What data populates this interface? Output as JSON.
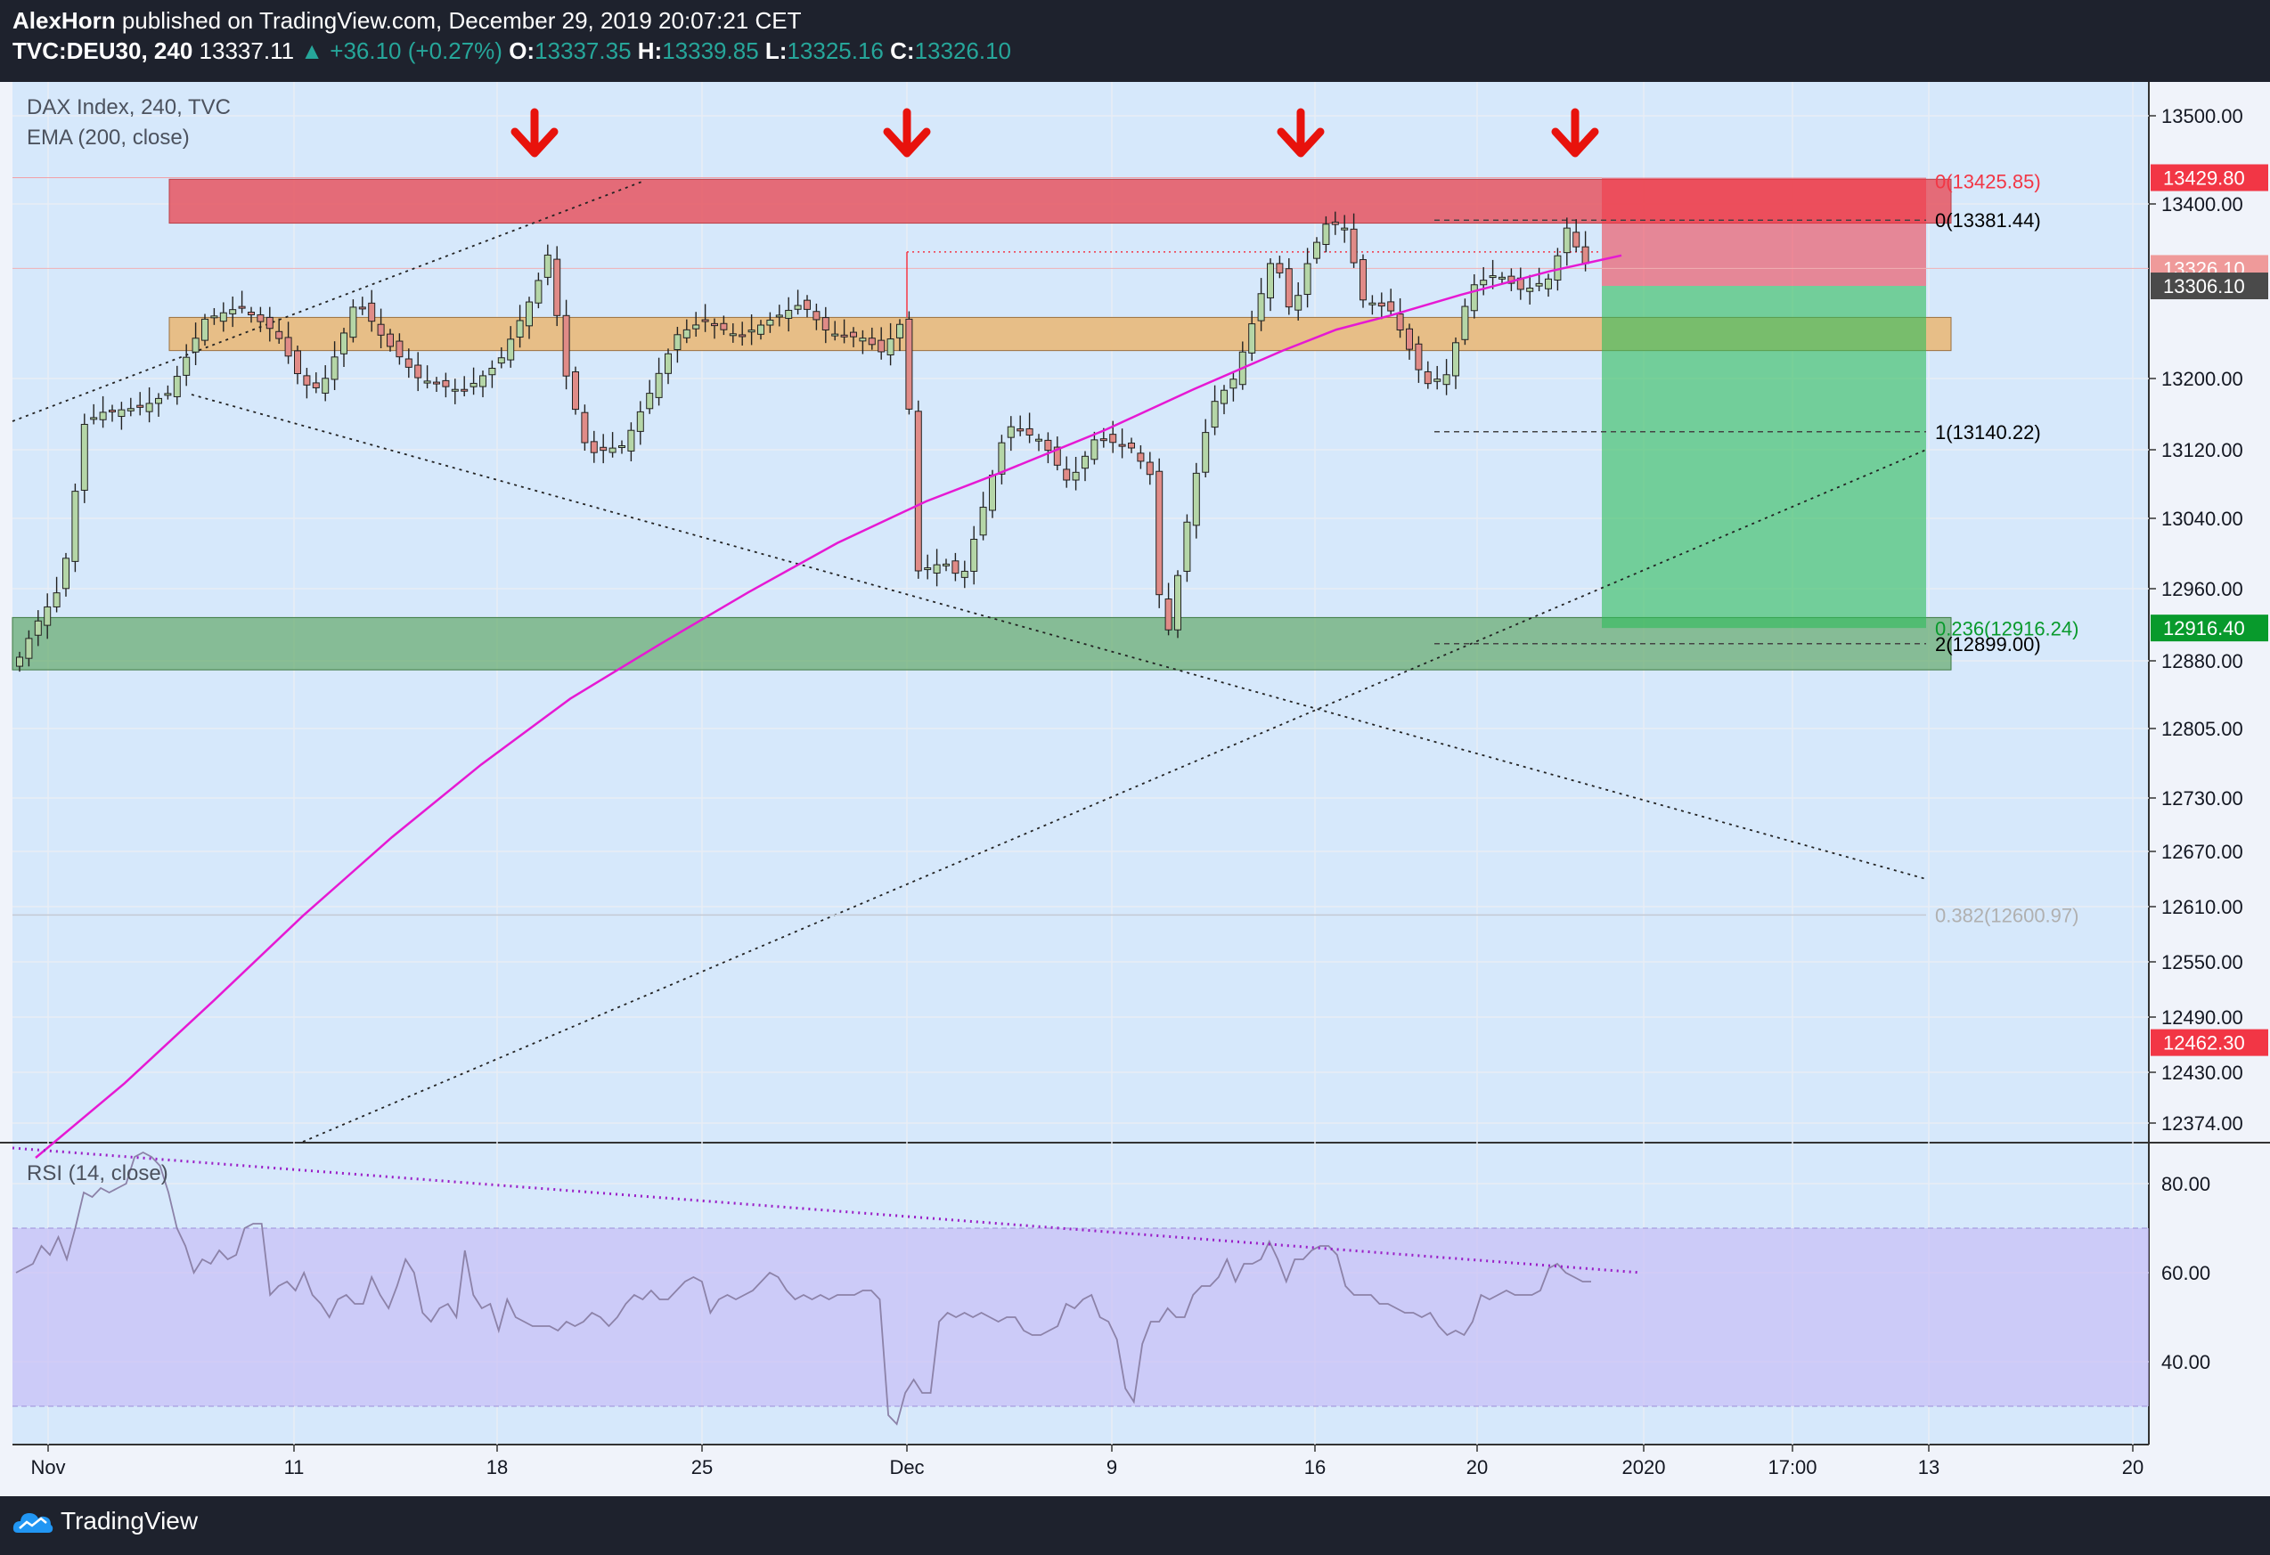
{
  "header": {
    "author": "AlexHorn",
    "published": "published on TradingView.com, December 29, 2019 20:07:21 CET",
    "symbol": "TVC:DEU30, 240",
    "last": "13337.11",
    "arrow": "▲",
    "change": "+36.10 (+0.27%)",
    "o_label": "O:",
    "o_value": "13337.35",
    "h_label": "H:",
    "h_value": "13339.85",
    "l_label": "L:",
    "l_value": "13325.16",
    "c_label": "C:",
    "c_value": "13326.10"
  },
  "footer": {
    "brand": "TradingView",
    "logo_icon": "tradingview-cloud-icon"
  },
  "colors": {
    "bg": "#d6e8fb",
    "up": "#b5d6a7",
    "down": "#e08b87",
    "ema": "#e619d3",
    "rsi": "#8c82a8",
    "resistance": "#e65560",
    "support_zone": "#e9b97a",
    "green_zone": "#5aa55f",
    "target": "#2ebd5a",
    "arrow": "#e8120c"
  },
  "chart_data": [
    {
      "type": "candlestick",
      "title": "DAX Index, 240, TVC",
      "indicator": "EMA (200, close)",
      "x_tick_labels": [
        "Nov",
        "11",
        "18",
        "25",
        "Dec",
        "9",
        "16",
        "20",
        "2020",
        "17:00",
        "13",
        "20"
      ],
      "y_tick_labels": [
        "13500.00",
        "13400.00",
        "13200.00",
        "13120.00",
        "13040.00",
        "12960.00",
        "12880.00",
        "12805.00",
        "12730.00",
        "12670.00",
        "12610.00",
        "12550.00",
        "12490.00",
        "12430.00",
        "12374.00"
      ],
      "y_range": [
        12350,
        13560
      ],
      "price_badges": [
        {
          "label": "13429.80",
          "price": 13429.8,
          "color": "#f23645"
        },
        {
          "label": "13326.10",
          "price": 13326.1,
          "color": "#ef9a9a"
        },
        {
          "label": "13306.10",
          "price": 13306.1,
          "color": "#4a4a4a"
        },
        {
          "label": "12916.40",
          "price": 12916.4,
          "color": "#089a2c"
        },
        {
          "label": "12462.30",
          "price": 12462.3,
          "color": "#f23645"
        }
      ],
      "levels": [
        {
          "label": "0(13425.85)",
          "price": 13425.85,
          "color": "#f23645"
        },
        {
          "label": "0(13381.44)",
          "price": 13381.44,
          "color": "#000000"
        },
        {
          "label": "1(13140.22)",
          "price": 13140.22,
          "color": "#000000"
        },
        {
          "label": "0.236(12916.24)",
          "price": 12916.24,
          "color": "#089a2c"
        },
        {
          "label": "2(12899.00)",
          "price": 12899.0,
          "color": "#000000"
        },
        {
          "label": "0.382(12600.97)",
          "price": 12600.97,
          "color": "#b0b0b0"
        }
      ],
      "zones": [
        {
          "name": "resistance",
          "from": 13378,
          "to": 13428
        },
        {
          "name": "support",
          "from": 13232,
          "to": 13270
        },
        {
          "name": "demand",
          "from": 12870,
          "to": 12928
        }
      ],
      "trade": {
        "entry": 13306.1,
        "stop": 13429.8,
        "target": 12916.4
      },
      "ema_samples": [
        [
          0,
          12335
        ],
        [
          100,
          12418
        ],
        [
          200,
          12508
        ],
        [
          300,
          12600
        ],
        [
          400,
          12686
        ],
        [
          500,
          12766
        ],
        [
          600,
          12838
        ],
        [
          700,
          12898
        ],
        [
          800,
          12956
        ],
        [
          900,
          13012
        ],
        [
          1000,
          13060
        ],
        [
          1080,
          13092
        ],
        [
          1200,
          13142
        ],
        [
          1300,
          13188
        ],
        [
          1400,
          13232
        ],
        [
          1460,
          13256
        ],
        [
          1520,
          13272
        ],
        [
          1600,
          13296
        ],
        [
          1700,
          13323
        ],
        [
          1780,
          13341
        ]
      ]
    },
    {
      "type": "line",
      "title": "RSI (14, close)",
      "y_tick_labels": [
        "80.00",
        "60.00",
        "40.00"
      ],
      "y_range": [
        26,
        90
      ],
      "band": [
        30,
        70
      ],
      "values": [
        60,
        61,
        62,
        66,
        64,
        68,
        63,
        70,
        78,
        77,
        79,
        78,
        79,
        80,
        86,
        87,
        86,
        84,
        78,
        70,
        66,
        60,
        63,
        62,
        65,
        63,
        64,
        70,
        71,
        71,
        55,
        57,
        58,
        56,
        60,
        55,
        53,
        50,
        54,
        55,
        53,
        53,
        59,
        55,
        52,
        57,
        63,
        60,
        51,
        49,
        52,
        53,
        50,
        65,
        55,
        52,
        53,
        47,
        54,
        50,
        49,
        48,
        48,
        48,
        47,
        49,
        48,
        49,
        51,
        50,
        48,
        50,
        53,
        55,
        54,
        56,
        54,
        54,
        56,
        58,
        59,
        58,
        51,
        54,
        55,
        54,
        55,
        56,
        58,
        60,
        59,
        56,
        54,
        55,
        54,
        55,
        54,
        55,
        55,
        55,
        56,
        56,
        54,
        28,
        26,
        33,
        36,
        33,
        33,
        49,
        51,
        50,
        51,
        50,
        51,
        50,
        49,
        50,
        50,
        47,
        46,
        46,
        47,
        48,
        53,
        52,
        54,
        55,
        50,
        49,
        45,
        34,
        31,
        44,
        49,
        49,
        52,
        50,
        50,
        55,
        57,
        57,
        59,
        63,
        58,
        62,
        62,
        63,
        67,
        63,
        58,
        63,
        63,
        65,
        66,
        66,
        64,
        57,
        55,
        55,
        55,
        53,
        53,
        52,
        51,
        51,
        50,
        51,
        48,
        46,
        47,
        46,
        49,
        55,
        54,
        55,
        56,
        55,
        55,
        55,
        56,
        61,
        62,
        60,
        59,
        58,
        58
      ]
    }
  ]
}
